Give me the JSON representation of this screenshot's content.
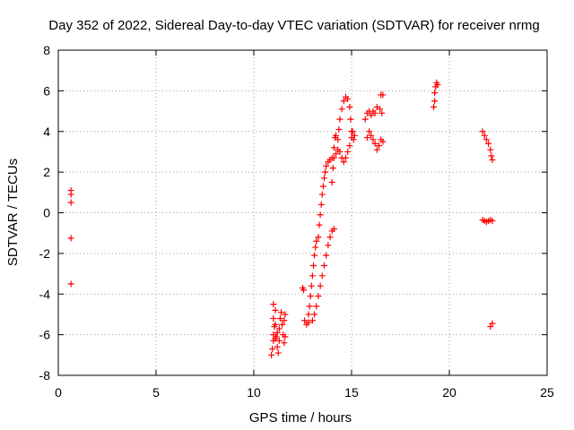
{
  "chart_data": {
    "type": "scatter",
    "title": "Day 352 of 2022, Sidereal Day-to-day VTEC variation (SDTVAR) for receiver nrmg",
    "xlabel": "GPS time / hours",
    "ylabel": "SDTVAR / TECUs",
    "xlim": [
      0,
      25
    ],
    "ylim": [
      -8,
      8
    ],
    "xticks": [
      0,
      5,
      10,
      15,
      20,
      25
    ],
    "yticks": [
      -8,
      -6,
      -4,
      -2,
      0,
      2,
      4,
      6,
      8
    ],
    "grid": true,
    "marker": "+",
    "color": "#ff0000",
    "series": [
      {
        "name": "SDTVAR",
        "points": [
          [
            0.65,
            1.1
          ],
          [
            0.65,
            0.9
          ],
          [
            0.65,
            0.5
          ],
          [
            0.65,
            -1.25
          ],
          [
            0.65,
            -3.5
          ],
          [
            10.9,
            -7.0
          ],
          [
            10.95,
            -6.7
          ],
          [
            11.0,
            -6.3
          ],
          [
            11.0,
            -6.0
          ],
          [
            11.05,
            -5.6
          ],
          [
            11.0,
            -5.2
          ],
          [
            11.0,
            -4.5
          ],
          [
            11.1,
            -4.8
          ],
          [
            11.1,
            -5.5
          ],
          [
            11.15,
            -6.1
          ],
          [
            11.2,
            -6.6
          ],
          [
            11.25,
            -6.9
          ],
          [
            11.3,
            -6.3
          ],
          [
            11.3,
            -5.7
          ],
          [
            11.35,
            -5.2
          ],
          [
            11.4,
            -4.9
          ],
          [
            11.45,
            -5.5
          ],
          [
            11.5,
            -6.0
          ],
          [
            11.55,
            -6.4
          ],
          [
            11.6,
            -6.1
          ],
          [
            11.55,
            -5.3
          ],
          [
            11.6,
            -5.0
          ],
          [
            11.2,
            -5.9
          ],
          [
            11.1,
            -6.2
          ],
          [
            12.5,
            -3.7
          ],
          [
            12.55,
            -3.8
          ],
          [
            12.6,
            -5.3
          ],
          [
            12.7,
            -5.5
          ],
          [
            12.8,
            -5.4
          ],
          [
            12.8,
            -5.0
          ],
          [
            12.85,
            -4.6
          ],
          [
            12.9,
            -4.1
          ],
          [
            12.95,
            -3.6
          ],
          [
            13.0,
            -3.1
          ],
          [
            13.05,
            -2.6
          ],
          [
            13.1,
            -2.1
          ],
          [
            13.15,
            -1.7
          ],
          [
            13.2,
            -1.4
          ],
          [
            13.3,
            -1.2
          ],
          [
            13.35,
            -0.6
          ],
          [
            13.4,
            -0.1
          ],
          [
            13.45,
            0.4
          ],
          [
            13.5,
            0.9
          ],
          [
            13.55,
            1.3
          ],
          [
            13.6,
            1.7
          ],
          [
            13.65,
            2.0
          ],
          [
            13.7,
            2.3
          ],
          [
            13.8,
            2.5
          ],
          [
            13.9,
            2.6
          ],
          [
            14.0,
            2.7
          ],
          [
            13.0,
            -5.3
          ],
          [
            13.1,
            -5.0
          ],
          [
            13.2,
            -4.6
          ],
          [
            13.3,
            -4.1
          ],
          [
            13.4,
            -3.6
          ],
          [
            13.5,
            -3.1
          ],
          [
            13.6,
            -2.6
          ],
          [
            13.7,
            -2.1
          ],
          [
            13.8,
            -1.6
          ],
          [
            13.9,
            -1.2
          ],
          [
            14.0,
            -0.9
          ],
          [
            14.1,
            -0.8
          ],
          [
            14.0,
            1.5
          ],
          [
            14.05,
            2.2
          ],
          [
            14.1,
            3.2
          ],
          [
            14.15,
            3.7
          ],
          [
            14.2,
            3.8
          ],
          [
            14.3,
            3.6
          ],
          [
            14.35,
            4.1
          ],
          [
            14.4,
            4.6
          ],
          [
            14.5,
            5.1
          ],
          [
            14.6,
            5.5
          ],
          [
            14.7,
            5.7
          ],
          [
            14.8,
            5.6
          ],
          [
            14.9,
            5.2
          ],
          [
            14.95,
            4.6
          ],
          [
            15.0,
            4.0
          ],
          [
            15.1,
            3.6
          ],
          [
            15.15,
            3.8
          ],
          [
            14.1,
            2.7
          ],
          [
            14.2,
            2.9
          ],
          [
            14.3,
            3.1
          ],
          [
            14.4,
            3.0
          ],
          [
            14.5,
            2.7
          ],
          [
            14.6,
            2.5
          ],
          [
            14.7,
            2.7
          ],
          [
            14.8,
            3.0
          ],
          [
            14.9,
            3.3
          ],
          [
            15.0,
            3.7
          ],
          [
            15.05,
            4.0
          ],
          [
            15.7,
            4.6
          ],
          [
            15.8,
            4.9
          ],
          [
            15.9,
            5.0
          ],
          [
            16.0,
            4.8
          ],
          [
            16.1,
            5.0
          ],
          [
            16.2,
            4.9
          ],
          [
            16.3,
            5.2
          ],
          [
            16.45,
            5.1
          ],
          [
            16.55,
            4.9
          ],
          [
            16.6,
            5.8
          ],
          [
            16.5,
            5.8
          ],
          [
            15.8,
            3.7
          ],
          [
            15.9,
            4.0
          ],
          [
            16.0,
            3.8
          ],
          [
            16.1,
            3.6
          ],
          [
            16.2,
            3.4
          ],
          [
            16.3,
            3.1
          ],
          [
            16.4,
            3.3
          ],
          [
            16.5,
            3.6
          ],
          [
            16.6,
            3.5
          ],
          [
            19.2,
            5.2
          ],
          [
            19.25,
            5.5
          ],
          [
            19.25,
            5.9
          ],
          [
            19.3,
            6.2
          ],
          [
            19.35,
            6.4
          ],
          [
            19.4,
            6.3
          ],
          [
            21.7,
            4.0
          ],
          [
            21.8,
            3.8
          ],
          [
            21.9,
            3.6
          ],
          [
            22.0,
            3.4
          ],
          [
            22.1,
            3.1
          ],
          [
            22.15,
            2.8
          ],
          [
            22.2,
            2.6
          ],
          [
            21.7,
            -0.35
          ],
          [
            21.8,
            -0.4
          ],
          [
            21.9,
            -0.45
          ],
          [
            22.0,
            -0.4
          ],
          [
            22.1,
            -0.35
          ],
          [
            22.2,
            -0.4
          ],
          [
            22.1,
            -5.6
          ],
          [
            22.2,
            -5.45
          ]
        ]
      }
    ]
  }
}
